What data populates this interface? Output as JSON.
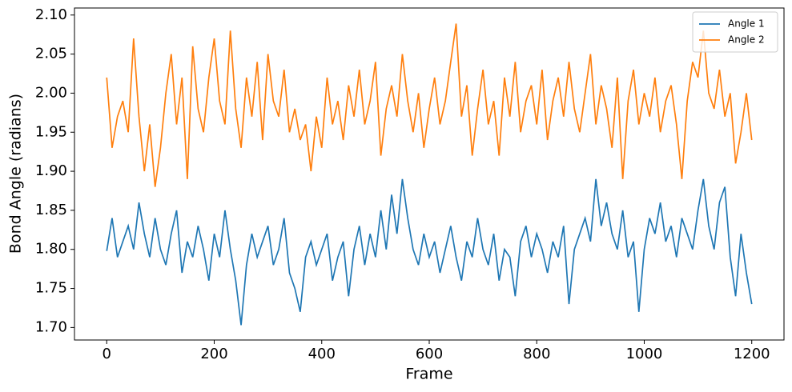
{
  "chart_data": {
    "type": "line",
    "xlabel": "Frame",
    "ylabel": "Bond Angle (radians)",
    "x": [
      0,
      10,
      20,
      30,
      40,
      50,
      60,
      70,
      80,
      90,
      100,
      110,
      120,
      130,
      140,
      150,
      160,
      170,
      180,
      190,
      200,
      210,
      220,
      230,
      240,
      250,
      260,
      270,
      280,
      290,
      300,
      310,
      320,
      330,
      340,
      350,
      360,
      370,
      380,
      390,
      400,
      410,
      420,
      430,
      440,
      450,
      460,
      470,
      480,
      490,
      500,
      510,
      520,
      530,
      540,
      550,
      560,
      570,
      580,
      590,
      600,
      610,
      620,
      630,
      640,
      650,
      660,
      670,
      680,
      690,
      700,
      710,
      720,
      730,
      740,
      750,
      760,
      770,
      780,
      790,
      800,
      810,
      820,
      830,
      840,
      850,
      860,
      870,
      880,
      890,
      900,
      910,
      920,
      930,
      940,
      950,
      960,
      970,
      980,
      990,
      1000,
      1010,
      1020,
      1030,
      1040,
      1050,
      1060,
      1070,
      1080,
      1090,
      1100,
      1110,
      1120,
      1130,
      1140,
      1150,
      1160,
      1170,
      1180,
      1190,
      1200
    ],
    "series": [
      {
        "name": "Angle 1",
        "color": "#1f77b4",
        "values": [
          1.798,
          1.84,
          1.79,
          1.81,
          1.83,
          1.8,
          1.86,
          1.82,
          1.79,
          1.84,
          1.8,
          1.78,
          1.82,
          1.85,
          1.77,
          1.81,
          1.79,
          1.83,
          1.8,
          1.76,
          1.82,
          1.79,
          1.85,
          1.8,
          1.76,
          1.703,
          1.78,
          1.82,
          1.79,
          1.81,
          1.83,
          1.78,
          1.8,
          1.84,
          1.77,
          1.75,
          1.72,
          1.79,
          1.81,
          1.78,
          1.8,
          1.82,
          1.76,
          1.79,
          1.81,
          1.74,
          1.8,
          1.83,
          1.78,
          1.82,
          1.79,
          1.85,
          1.8,
          1.87,
          1.82,
          1.89,
          1.84,
          1.8,
          1.78,
          1.82,
          1.79,
          1.81,
          1.77,
          1.8,
          1.83,
          1.79,
          1.76,
          1.81,
          1.79,
          1.84,
          1.8,
          1.78,
          1.82,
          1.76,
          1.8,
          1.79,
          1.74,
          1.81,
          1.83,
          1.79,
          1.82,
          1.8,
          1.77,
          1.81,
          1.79,
          1.83,
          1.73,
          1.8,
          1.82,
          1.84,
          1.81,
          1.89,
          1.83,
          1.86,
          1.82,
          1.8,
          1.85,
          1.79,
          1.81,
          1.72,
          1.8,
          1.84,
          1.82,
          1.86,
          1.81,
          1.83,
          1.79,
          1.84,
          1.82,
          1.8,
          1.85,
          1.89,
          1.83,
          1.8,
          1.86,
          1.88,
          1.79,
          1.74,
          1.82,
          1.77,
          1.73
        ]
      },
      {
        "name": "Angle 2",
        "color": "#ff7f0e",
        "values": [
          2.02,
          1.93,
          1.97,
          1.99,
          1.95,
          2.07,
          1.97,
          1.9,
          1.96,
          1.88,
          1.93,
          2.0,
          2.05,
          1.96,
          2.02,
          1.89,
          2.06,
          1.98,
          1.95,
          2.02,
          2.07,
          1.99,
          1.96,
          2.08,
          1.98,
          1.93,
          2.02,
          1.97,
          2.04,
          1.94,
          2.05,
          1.99,
          1.97,
          2.03,
          1.95,
          1.98,
          1.94,
          1.96,
          1.9,
          1.97,
          1.93,
          2.02,
          1.96,
          1.99,
          1.94,
          2.01,
          1.97,
          2.03,
          1.96,
          1.99,
          2.04,
          1.92,
          1.98,
          2.01,
          1.97,
          2.05,
          1.99,
          1.95,
          2.0,
          1.93,
          1.98,
          2.02,
          1.96,
          1.99,
          2.04,
          2.089,
          1.97,
          2.01,
          1.92,
          1.98,
          2.03,
          1.96,
          1.99,
          1.92,
          2.02,
          1.97,
          2.04,
          1.95,
          1.99,
          2.01,
          1.96,
          2.03,
          1.94,
          1.99,
          2.02,
          1.97,
          2.04,
          1.98,
          1.95,
          2.0,
          2.05,
          1.96,
          2.01,
          1.98,
          1.93,
          2.02,
          1.89,
          1.99,
          2.03,
          1.96,
          2.0,
          1.97,
          2.02,
          1.95,
          1.99,
          2.01,
          1.96,
          1.89,
          1.99,
          2.04,
          2.02,
          2.08,
          2.0,
          1.98,
          2.03,
          1.97,
          2.0,
          1.91,
          1.95,
          2.0,
          1.94
        ]
      }
    ],
    "xlim": [
      -60,
      1260
    ],
    "ylim": [
      1.684,
      2.109
    ],
    "xticks": [
      0,
      200,
      400,
      600,
      800,
      1000,
      1200
    ],
    "yticks": [
      {
        "value": 1.7,
        "label": "1.70"
      },
      1.75,
      {
        "value": 1.8,
        "label": "1.80"
      },
      1.85,
      {
        "value": 1.9,
        "label": "1.90"
      },
      1.95,
      {
        "value": 2.0,
        "label": "2.00"
      },
      2.05,
      {
        "value": 2.1,
        "label": "2.10"
      }
    ],
    "legend": "upper right",
    "grid": false
  }
}
